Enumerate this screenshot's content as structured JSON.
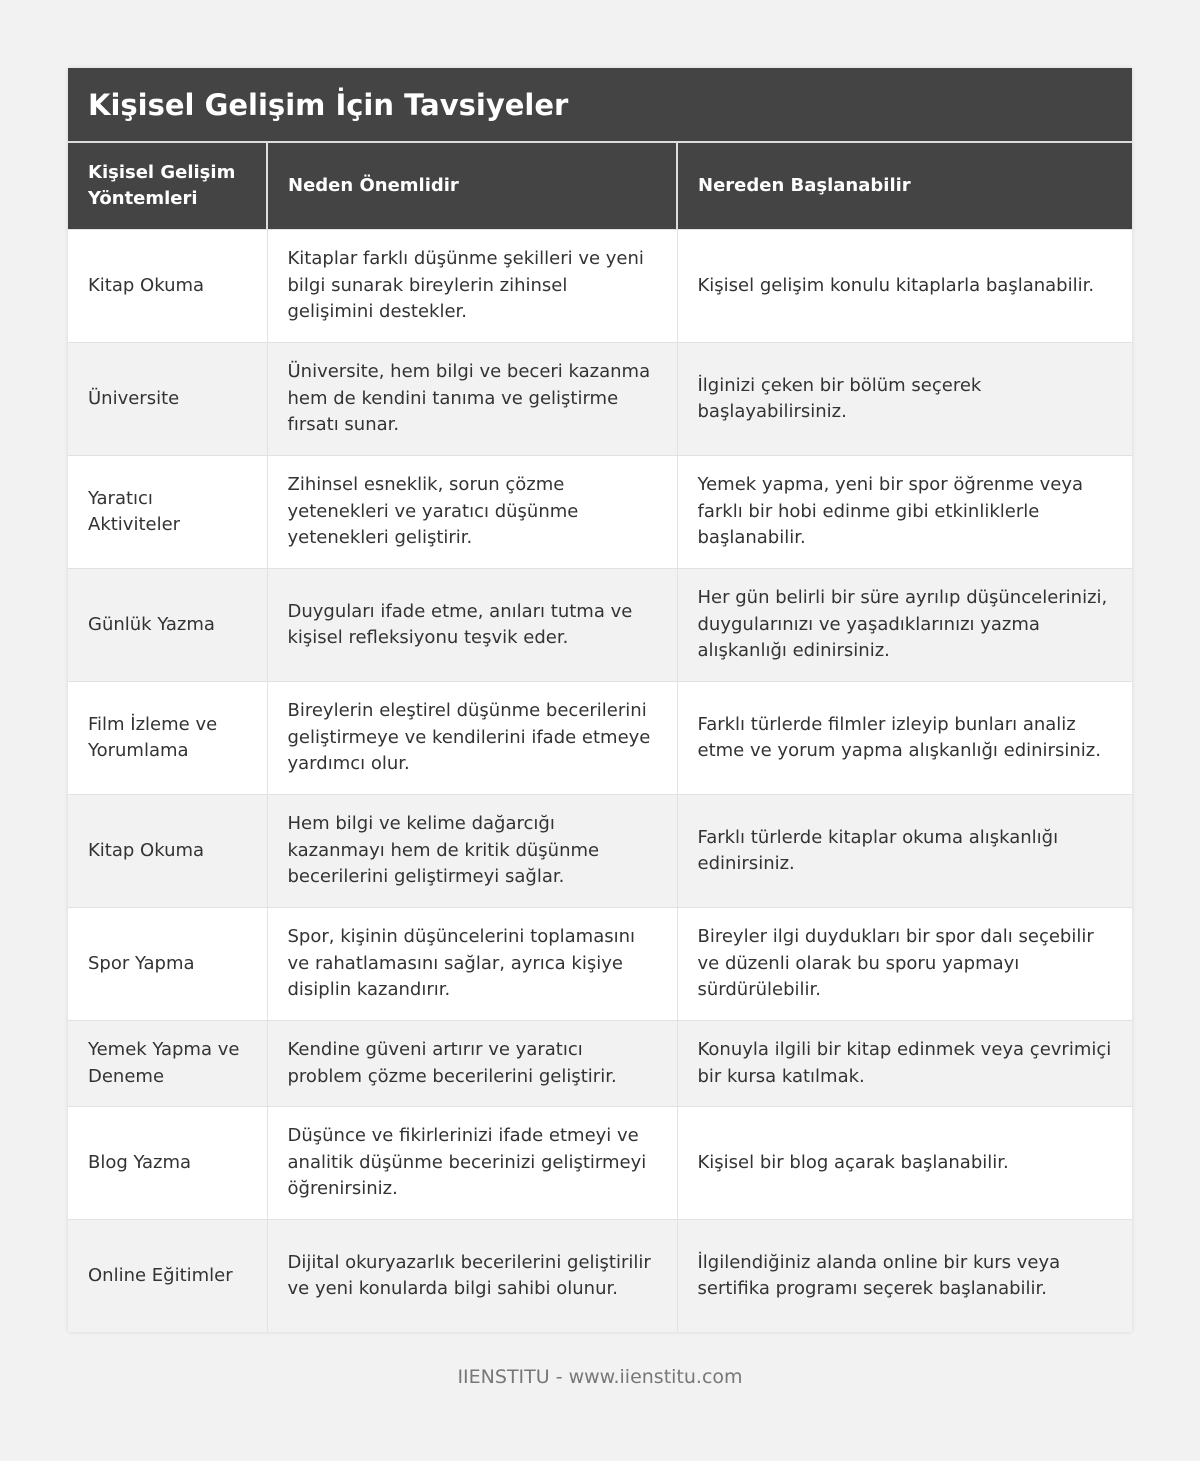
{
  "title": "Kişisel Gelişim İçin Tavsiyeler",
  "columns": [
    "Kişisel Gelişim Yöntemleri",
    "Neden Önemlidir",
    "Nereden Başlanabilir"
  ],
  "rows": [
    [
      "Kitap Okuma",
      "Kitaplar farklı düşünme şekilleri ve yeni bilgi sunarak bireylerin zihinsel gelişimini destekler.",
      "Kişisel gelişim konulu kitaplarla başlanabilir."
    ],
    [
      "Üniversite",
      "Üniversite, hem bilgi ve beceri kazanma hem de kendini tanıma ve geliştirme fırsatı sunar.",
      "İlginizi çeken bir bölüm seçerek başlayabilirsiniz."
    ],
    [
      "Yaratıcı Aktiviteler",
      "Zihinsel esneklik, sorun çözme yetenekleri ve yaratıcı düşünme yetenekleri geliştirir.",
      "Yemek yapma, yeni bir spor öğrenme veya farklı bir hobi edinme gibi etkinliklerle başlanabilir."
    ],
    [
      "Günlük Yazma",
      "Duyguları ifade etme, anıları tutma ve kişisel refleksiyonu teşvik eder.",
      "Her gün belirli bir süre ayrılıp düşüncelerinizi, duygularınızı ve yaşadıklarınızı yazma alışkanlığı edinirsiniz."
    ],
    [
      "Film İzleme ve Yorumlama",
      "Bireylerin eleştirel düşünme becerilerini geliştirmeye ve kendilerini ifade etmeye yardımcı olur.",
      "Farklı türlerde filmler izleyip bunları analiz etme ve yorum yapma alışkanlığı edinirsiniz."
    ],
    [
      "Kitap Okuma",
      "Hem bilgi ve kelime dağarcığı kazanmayı hem de kritik düşünme becerilerini geliştirmeyi sağlar.",
      "Farklı türlerde kitaplar okuma alışkanlığı edinirsiniz."
    ],
    [
      "Spor Yapma",
      "Spor, kişinin düşüncelerini toplamasını ve rahatlamasını sağlar, ayrıca kişiye disiplin kazandırır.",
      "Bireyler ilgi duydukları bir spor dalı seçebilir ve düzenli olarak bu sporu yapmayı sürdürülebilir."
    ],
    [
      "Yemek Yapma ve Deneme",
      "Kendine güveni artırır ve yaratıcı problem çözme becerilerini geliştirir.",
      "Konuyla ilgili bir kitap edinmek veya çevrimiçi bir kursa katılmak."
    ],
    [
      "Blog Yazma",
      "Düşünce ve fikirlerinizi ifade etmeyi ve analitik düşünme becerinizi geliştirmeyi öğrenirsiniz.",
      "Kişisel bir blog açarak başlanabilir."
    ],
    [
      "Online Eğitimler",
      "Dijital okuryazarlık becerilerini geliştirilir ve yeni konularda bilgi sahibi olunur.",
      "İlgilendiğiniz alanda online bir kurs veya sertifika programı seçerek başlanabilir."
    ]
  ],
  "footer": "IIENSTITU - www.iienstitu.com"
}
